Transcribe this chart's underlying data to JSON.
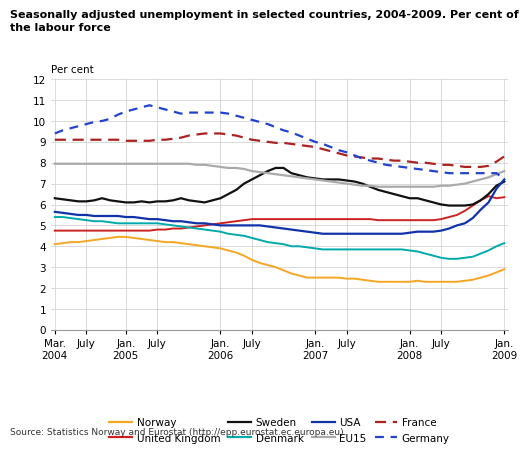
{
  "title_line1": "Seasonally adjusted unemployment in selected countries, 2004-2009. Per cent of",
  "title_line2": "the labour force",
  "ylabel": "Per cent",
  "source": "Source: Statistics Norway and Eurostat (http://epp.eurostat.ec.europa.eu).",
  "ylim": [
    0,
    12
  ],
  "yticks": [
    0,
    1,
    2,
    3,
    4,
    5,
    6,
    7,
    8,
    9,
    10,
    11,
    12
  ],
  "grid_color": "#cccccc",
  "x_tick_labels": [
    "Mar.\n2004",
    "July",
    "Jan.\n2005",
    "July",
    "Jan.\n2006",
    "July",
    "Jan.\n2007",
    "July",
    "Jan.\n2008",
    "July",
    "Jan.\n2009"
  ],
  "x_tick_positions": [
    0,
    4,
    9,
    13,
    21,
    25,
    33,
    37,
    45,
    49,
    57
  ],
  "series": {
    "Norway": {
      "color": "#f5a623",
      "linestyle": "-",
      "linewidth": 1.4,
      "dashes": null,
      "values": [
        4.1,
        4.15,
        4.2,
        4.2,
        4.25,
        4.3,
        4.35,
        4.4,
        4.45,
        4.45,
        4.4,
        4.35,
        4.3,
        4.25,
        4.2,
        4.2,
        4.15,
        4.1,
        4.05,
        4.0,
        3.95,
        3.9,
        3.8,
        3.7,
        3.55,
        3.35,
        3.2,
        3.1,
        3.0,
        2.85,
        2.7,
        2.6,
        2.5,
        2.5,
        2.5,
        2.5,
        2.5,
        2.45,
        2.45,
        2.4,
        2.35,
        2.3,
        2.3,
        2.3,
        2.3,
        2.3,
        2.35,
        2.3,
        2.3,
        2.3,
        2.3,
        2.3,
        2.35,
        2.4,
        2.5,
        2.6,
        2.75,
        2.9
      ]
    },
    "United Kingdom": {
      "color": "#cc2222",
      "linestyle": "-",
      "linewidth": 1.4,
      "dashes": null,
      "values": [
        4.75,
        4.75,
        4.75,
        4.75,
        4.75,
        4.75,
        4.75,
        4.75,
        4.75,
        4.75,
        4.75,
        4.75,
        4.75,
        4.8,
        4.8,
        4.85,
        4.85,
        4.9,
        4.95,
        5.0,
        5.05,
        5.1,
        5.15,
        5.2,
        5.25,
        5.3,
        5.3,
        5.3,
        5.3,
        5.3,
        5.3,
        5.3,
        5.3,
        5.3,
        5.3,
        5.3,
        5.3,
        5.3,
        5.3,
        5.3,
        5.3,
        5.25,
        5.25,
        5.25,
        5.25,
        5.25,
        5.25,
        5.25,
        5.25,
        5.3,
        5.4,
        5.5,
        5.7,
        5.95,
        6.2,
        6.4,
        6.3,
        6.35
      ]
    },
    "Sweden": {
      "color": "#111111",
      "linestyle": "-",
      "linewidth": 1.6,
      "dashes": null,
      "values": [
        6.3,
        6.25,
        6.2,
        6.15,
        6.15,
        6.2,
        6.3,
        6.2,
        6.15,
        6.1,
        6.1,
        6.15,
        6.1,
        6.15,
        6.15,
        6.2,
        6.3,
        6.2,
        6.15,
        6.1,
        6.2,
        6.3,
        6.5,
        6.7,
        7.0,
        7.2,
        7.4,
        7.6,
        7.75,
        7.75,
        7.5,
        7.4,
        7.3,
        7.25,
        7.2,
        7.2,
        7.2,
        7.15,
        7.1,
        7.0,
        6.85,
        6.7,
        6.6,
        6.5,
        6.4,
        6.3,
        6.3,
        6.2,
        6.1,
        6.0,
        5.95,
        5.95,
        5.95,
        6.0,
        6.2,
        6.5,
        6.9,
        7.1
      ]
    },
    "Denmark": {
      "color": "#00aaaa",
      "linestyle": "-",
      "linewidth": 1.4,
      "dashes": null,
      "values": [
        5.4,
        5.4,
        5.35,
        5.3,
        5.25,
        5.2,
        5.2,
        5.15,
        5.1,
        5.1,
        5.1,
        5.1,
        5.1,
        5.1,
        5.05,
        5.0,
        4.95,
        4.9,
        4.85,
        4.8,
        4.75,
        4.7,
        4.6,
        4.55,
        4.5,
        4.4,
        4.3,
        4.2,
        4.15,
        4.1,
        4.0,
        4.0,
        3.95,
        3.9,
        3.85,
        3.85,
        3.85,
        3.85,
        3.85,
        3.85,
        3.85,
        3.85,
        3.85,
        3.85,
        3.85,
        3.8,
        3.75,
        3.65,
        3.55,
        3.45,
        3.4,
        3.4,
        3.45,
        3.5,
        3.65,
        3.8,
        4.0,
        4.15
      ]
    },
    "USA": {
      "color": "#1133aa",
      "linestyle": "-",
      "linewidth": 1.6,
      "dashes": null,
      "values": [
        5.65,
        5.6,
        5.55,
        5.5,
        5.5,
        5.45,
        5.45,
        5.45,
        5.45,
        5.4,
        5.4,
        5.35,
        5.3,
        5.3,
        5.25,
        5.2,
        5.2,
        5.15,
        5.1,
        5.1,
        5.05,
        5.0,
        5.0,
        5.0,
        5.0,
        5.0,
        5.0,
        4.95,
        4.9,
        4.85,
        4.8,
        4.75,
        4.7,
        4.65,
        4.6,
        4.6,
        4.6,
        4.6,
        4.6,
        4.6,
        4.6,
        4.6,
        4.6,
        4.6,
        4.6,
        4.65,
        4.7,
        4.7,
        4.7,
        4.75,
        4.85,
        5.0,
        5.1,
        5.35,
        5.75,
        6.1,
        6.75,
        7.2
      ]
    },
    "EU15": {
      "color": "#aaaaaa",
      "linestyle": "-",
      "linewidth": 1.6,
      "dashes": null,
      "values": [
        7.95,
        7.95,
        7.95,
        7.95,
        7.95,
        7.95,
        7.95,
        7.95,
        7.95,
        7.95,
        7.95,
        7.95,
        7.95,
        7.95,
        7.95,
        7.95,
        7.95,
        7.95,
        7.9,
        7.9,
        7.85,
        7.8,
        7.75,
        7.75,
        7.7,
        7.6,
        7.55,
        7.5,
        7.45,
        7.4,
        7.35,
        7.3,
        7.25,
        7.2,
        7.15,
        7.1,
        7.05,
        7.0,
        6.95,
        6.9,
        6.9,
        6.85,
        6.85,
        6.85,
        6.85,
        6.85,
        6.85,
        6.85,
        6.85,
        6.9,
        6.9,
        6.95,
        7.0,
        7.1,
        7.2,
        7.3,
        7.45,
        7.6
      ]
    },
    "France": {
      "color": "#aa2222",
      "linestyle": "--",
      "linewidth": 1.6,
      "dashes": [
        5,
        3
      ],
      "values": [
        9.1,
        9.1,
        9.1,
        9.1,
        9.1,
        9.1,
        9.1,
        9.1,
        9.1,
        9.05,
        9.05,
        9.05,
        9.05,
        9.1,
        9.1,
        9.15,
        9.2,
        9.3,
        9.35,
        9.4,
        9.4,
        9.4,
        9.35,
        9.3,
        9.2,
        9.1,
        9.05,
        9.0,
        8.95,
        8.95,
        8.9,
        8.85,
        8.8,
        8.75,
        8.65,
        8.55,
        8.45,
        8.35,
        8.3,
        8.25,
        8.2,
        8.2,
        8.15,
        8.1,
        8.1,
        8.05,
        8.0,
        8.0,
        7.95,
        7.9,
        7.9,
        7.85,
        7.8,
        7.8,
        7.8,
        7.85,
        8.05,
        8.3
      ]
    },
    "Germany": {
      "color": "#2244cc",
      "linestyle": "--",
      "linewidth": 1.6,
      "dashes": [
        4,
        3
      ],
      "values": [
        9.4,
        9.55,
        9.65,
        9.75,
        9.85,
        9.95,
        10.0,
        10.1,
        10.3,
        10.45,
        10.55,
        10.65,
        10.75,
        10.65,
        10.55,
        10.45,
        10.35,
        10.4,
        10.4,
        10.4,
        10.4,
        10.4,
        10.35,
        10.25,
        10.15,
        10.05,
        9.95,
        9.85,
        9.7,
        9.55,
        9.45,
        9.3,
        9.15,
        9.0,
        8.9,
        8.75,
        8.6,
        8.5,
        8.35,
        8.2,
        8.1,
        8.0,
        7.9,
        7.85,
        7.8,
        7.75,
        7.7,
        7.65,
        7.6,
        7.55,
        7.5,
        7.5,
        7.5,
        7.5,
        7.5,
        7.5,
        7.5,
        7.2
      ]
    }
  },
  "legend_order": [
    "Norway",
    "United Kingdom",
    "Sweden",
    "Denmark",
    "USA",
    "EU15",
    "France",
    "Germany"
  ]
}
